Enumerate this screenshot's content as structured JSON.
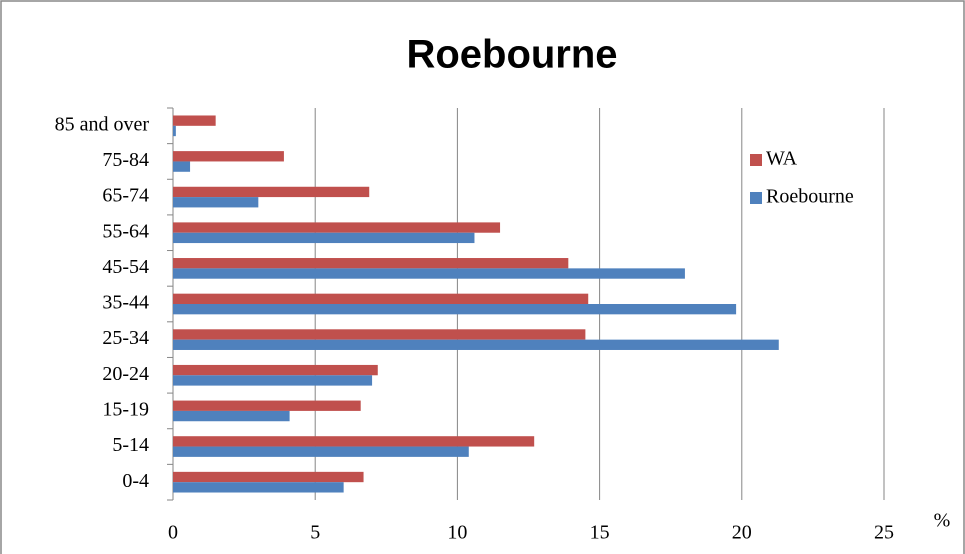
{
  "chart_data": {
    "type": "hbar",
    "title": "Roebourne",
    "categories": [
      "0-4",
      "5-14",
      "15-19",
      "20-24",
      "25-34",
      "35-44",
      "45-54",
      "55-64",
      "65-74",
      "75-84",
      "85 and over"
    ],
    "series": [
      {
        "name": "WA",
        "color": "#c0504d",
        "values": [
          6.7,
          12.7,
          6.6,
          7.2,
          14.5,
          14.6,
          13.9,
          11.5,
          6.9,
          3.9,
          1.5
        ]
      },
      {
        "name": "Roebourne",
        "color": "#4f81bd",
        "values": [
          6.0,
          10.4,
          4.1,
          7.0,
          21.3,
          19.8,
          18.0,
          10.6,
          3.0,
          0.6,
          0.1
        ]
      }
    ],
    "xlim": [
      0,
      25
    ],
    "xticks": [
      0,
      5,
      10,
      15,
      20,
      25
    ],
    "xlabel": "%",
    "grid": true,
    "legend": "top-right"
  }
}
